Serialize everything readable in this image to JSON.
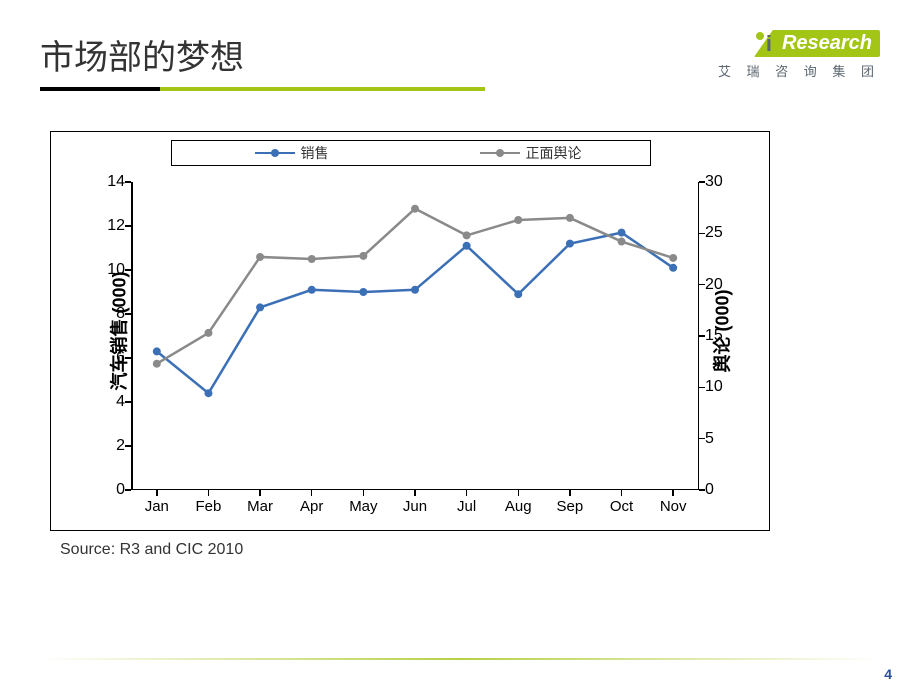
{
  "title": "市场部的梦想",
  "logo": {
    "brand_i": "i",
    "brand_rest": "Research",
    "subtitle": "艾 瑞 咨 询 集 团"
  },
  "source": "Source: R3 and CIC 2010",
  "page_number": "4",
  "colors": {
    "accent_green": "#a2c516",
    "series1": "#3b6fb6",
    "series2": "#8a8a8a",
    "axis": "#000000",
    "text": "#333333",
    "logo_gray": "#5b6770",
    "page_num": "#2a4e9c"
  },
  "chart": {
    "type": "line",
    "legend": [
      {
        "label": "销售",
        "color": "#3b6fb6"
      },
      {
        "label": "正面舆论",
        "color": "#8a8a8a"
      }
    ],
    "x_categories": [
      "Jan",
      "Feb",
      "Mar",
      "Apr",
      "May",
      "Jun",
      "Jul",
      "Aug",
      "Sep",
      "Oct",
      "Nov"
    ],
    "y_left": {
      "label": "汽车销售 (000)",
      "min": 0,
      "max": 14,
      "step": 2,
      "ticks": [
        0,
        2,
        4,
        6,
        8,
        10,
        12,
        14
      ]
    },
    "y_right": {
      "label": "舆论 (000)",
      "min": 0,
      "max": 30,
      "step": 5,
      "ticks": [
        0,
        5,
        10,
        15,
        20,
        25,
        30
      ]
    },
    "series": [
      {
        "name": "销售",
        "axis": "left",
        "color": "#3b6fb6",
        "values": [
          6.3,
          4.4,
          8.3,
          9.1,
          9.0,
          9.1,
          11.1,
          8.9,
          11.2,
          11.7,
          10.1
        ],
        "line_width": 2.5,
        "marker_size": 8
      },
      {
        "name": "正面舆论",
        "axis": "right",
        "color": "#8a8a8a",
        "values": [
          12.3,
          15.3,
          22.7,
          22.5,
          22.8,
          27.4,
          24.8,
          26.3,
          26.5,
          24.2,
          22.6
        ],
        "line_width": 2.5,
        "marker_size": 8
      }
    ],
    "plot_bg": "#ffffff",
    "border_color": "#000000"
  }
}
